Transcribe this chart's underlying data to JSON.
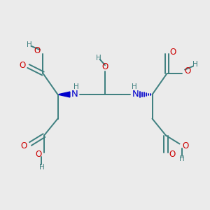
{
  "bg_color": "#ebebeb",
  "bond_color": "#3d7f7f",
  "o_color": "#cc0000",
  "n_color": "#0000cc",
  "h_color": "#3d7f7f",
  "wedge_color": "#0000cc",
  "line_width": 1.4,
  "fig_size": [
    3.0,
    3.0
  ],
  "dpi": 100,
  "xlim": [
    0,
    10
  ],
  "ylim": [
    0,
    10
  ]
}
